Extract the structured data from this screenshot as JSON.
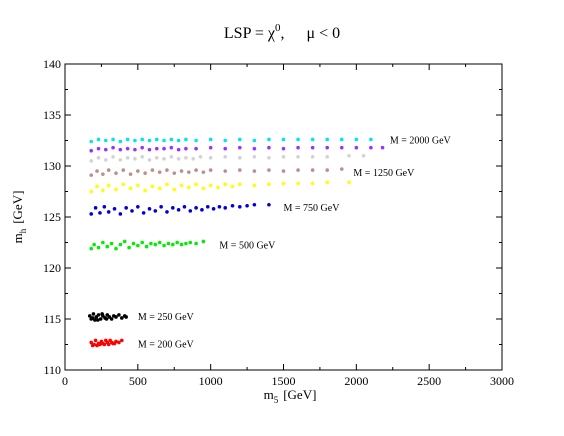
{
  "chart_data": {
    "type": "scatter",
    "title": {
      "prefix": "LSP = χ",
      "superscript": "0",
      "suffix": ",",
      "condition": "μ  < 0"
    },
    "xlabel": {
      "main": "m",
      "subscript": "5",
      "unit": "[GeV]"
    },
    "ylabel": {
      "main": "m",
      "subscript": "h",
      "unit": "[GeV]"
    },
    "xlim": [
      0,
      3000
    ],
    "ylim": [
      110,
      140
    ],
    "xticks": [
      "0",
      "500",
      "1000",
      "1500",
      "2000",
      "2500",
      "3000"
    ],
    "yticks": [
      "110",
      "115",
      "120",
      "125",
      "130",
      "135",
      "140"
    ],
    "grid": false,
    "series": [
      {
        "color": "#ff0000",
        "points": [
          [
            180,
            112.7
          ],
          [
            200,
            112.5
          ],
          [
            210,
            112.9
          ],
          [
            230,
            112.6
          ],
          [
            250,
            112.8
          ],
          [
            270,
            112.5
          ],
          [
            290,
            112.7
          ],
          [
            310,
            112.9
          ],
          [
            330,
            112.6
          ],
          [
            350,
            112.8
          ],
          [
            370,
            112.7
          ],
          [
            390,
            112.9
          ],
          [
            190,
            112.4
          ],
          [
            220,
            112.4
          ],
          [
            240,
            112.5
          ],
          [
            260,
            112.6
          ],
          [
            280,
            112.9
          ],
          [
            300,
            112.5
          ],
          [
            320,
            112.7
          ],
          [
            340,
            112.6
          ]
        ]
      },
      {
        "color": "#000000",
        "points": [
          [
            170,
            115.3
          ],
          [
            180,
            115.0
          ],
          [
            195,
            115.5
          ],
          [
            205,
            114.9
          ],
          [
            215,
            115.2
          ],
          [
            230,
            115.4
          ],
          [
            245,
            115.0
          ],
          [
            260,
            115.3
          ],
          [
            275,
            115.1
          ],
          [
            290,
            115.4
          ],
          [
            305,
            115.2
          ],
          [
            320,
            115.0
          ],
          [
            335,
            115.3
          ],
          [
            350,
            115.2
          ],
          [
            370,
            115.4
          ],
          [
            390,
            115.1
          ],
          [
            410,
            115.3
          ],
          [
            420,
            115.2
          ],
          [
            190,
            115.1
          ],
          [
            225,
            114.9
          ],
          [
            255,
            115.5
          ],
          [
            285,
            115.0
          ]
        ]
      },
      {
        "color": "#00ee00",
        "points": [
          [
            180,
            121.9
          ],
          [
            200,
            122.3
          ],
          [
            230,
            122.0
          ],
          [
            260,
            122.5
          ],
          [
            290,
            122.1
          ],
          [
            320,
            122.4
          ],
          [
            350,
            121.9
          ],
          [
            380,
            122.3
          ],
          [
            410,
            122.6
          ],
          [
            440,
            122.0
          ],
          [
            470,
            122.4
          ],
          [
            500,
            122.2
          ],
          [
            530,
            122.5
          ],
          [
            560,
            122.1
          ],
          [
            590,
            122.4
          ],
          [
            620,
            122.3
          ],
          [
            650,
            122.5
          ],
          [
            680,
            122.2
          ],
          [
            710,
            122.4
          ],
          [
            740,
            122.3
          ],
          [
            770,
            122.5
          ],
          [
            800,
            122.3
          ],
          [
            830,
            122.4
          ],
          [
            860,
            122.5
          ],
          [
            900,
            122.4
          ],
          [
            950,
            122.6
          ]
        ]
      },
      {
        "color": "#0000dd",
        "points": [
          [
            180,
            125.3
          ],
          [
            210,
            125.9
          ],
          [
            240,
            125.4
          ],
          [
            270,
            126.0
          ],
          [
            300,
            125.5
          ],
          [
            340,
            125.8
          ],
          [
            380,
            125.3
          ],
          [
            420,
            125.9
          ],
          [
            460,
            125.6
          ],
          [
            500,
            126.0
          ],
          [
            540,
            125.4
          ],
          [
            580,
            125.8
          ],
          [
            620,
            125.6
          ],
          [
            660,
            126.0
          ],
          [
            700,
            125.5
          ],
          [
            740,
            125.9
          ],
          [
            780,
            125.7
          ],
          [
            820,
            126.0
          ],
          [
            860,
            125.6
          ],
          [
            900,
            125.9
          ],
          [
            940,
            125.7
          ],
          [
            980,
            126.0
          ],
          [
            1020,
            125.8
          ],
          [
            1060,
            126.0
          ],
          [
            1100,
            125.9
          ],
          [
            1150,
            126.1
          ],
          [
            1200,
            126.0
          ],
          [
            1250,
            126.1
          ],
          [
            1300,
            126.2
          ],
          [
            1400,
            126.2
          ]
        ]
      },
      {
        "color": "#ffff00",
        "points": [
          [
            180,
            127.5
          ],
          [
            220,
            128.0
          ],
          [
            260,
            127.6
          ],
          [
            300,
            128.1
          ],
          [
            350,
            127.7
          ],
          [
            400,
            128.2
          ],
          [
            450,
            127.8
          ],
          [
            500,
            128.1
          ],
          [
            550,
            127.6
          ],
          [
            600,
            128.0
          ],
          [
            650,
            127.8
          ],
          [
            700,
            128.2
          ],
          [
            750,
            127.7
          ],
          [
            800,
            128.1
          ],
          [
            850,
            127.9
          ],
          [
            900,
            128.2
          ],
          [
            950,
            127.8
          ],
          [
            1000,
            128.1
          ],
          [
            1050,
            127.9
          ],
          [
            1100,
            128.2
          ],
          [
            1150,
            128.0
          ],
          [
            1200,
            128.2
          ],
          [
            1300,
            128.1
          ],
          [
            1400,
            128.2
          ],
          [
            1500,
            128.3
          ],
          [
            1600,
            128.3
          ],
          [
            1700,
            128.3
          ],
          [
            1800,
            128.4
          ],
          [
            1950,
            128.4
          ]
        ]
      },
      {
        "color": "#bc8f8f",
        "points": [
          [
            180,
            129.1
          ],
          [
            220,
            129.5
          ],
          [
            260,
            129.2
          ],
          [
            300,
            129.6
          ],
          [
            350,
            129.3
          ],
          [
            400,
            129.6
          ],
          [
            450,
            129.2
          ],
          [
            500,
            129.5
          ],
          [
            550,
            129.3
          ],
          [
            600,
            129.6
          ],
          [
            650,
            129.4
          ],
          [
            700,
            129.6
          ],
          [
            750,
            129.3
          ],
          [
            800,
            129.5
          ],
          [
            850,
            129.4
          ],
          [
            900,
            129.6
          ],
          [
            950,
            129.4
          ],
          [
            1000,
            129.6
          ],
          [
            1100,
            129.5
          ],
          [
            1200,
            129.6
          ],
          [
            1300,
            129.5
          ],
          [
            1400,
            129.6
          ],
          [
            1500,
            129.5
          ],
          [
            1600,
            129.6
          ],
          [
            1700,
            129.6
          ],
          [
            1800,
            129.6
          ],
          [
            1900,
            129.7
          ]
        ]
      },
      {
        "color": "#d3d3d3",
        "points": [
          [
            180,
            130.5
          ],
          [
            230,
            130.8
          ],
          [
            280,
            130.6
          ],
          [
            330,
            130.9
          ],
          [
            380,
            130.6
          ],
          [
            430,
            130.8
          ],
          [
            480,
            130.7
          ],
          [
            530,
            130.9
          ],
          [
            580,
            130.6
          ],
          [
            630,
            130.8
          ],
          [
            680,
            130.7
          ],
          [
            730,
            130.9
          ],
          [
            780,
            130.7
          ],
          [
            830,
            130.8
          ],
          [
            880,
            130.7
          ],
          [
            930,
            130.9
          ],
          [
            1000,
            130.8
          ],
          [
            1100,
            130.9
          ],
          [
            1200,
            130.8
          ],
          [
            1300,
            130.9
          ],
          [
            1400,
            130.8
          ],
          [
            1500,
            130.9
          ],
          [
            1600,
            130.9
          ],
          [
            1700,
            130.9
          ],
          [
            1800,
            130.9
          ],
          [
            1950,
            131.0
          ],
          [
            2050,
            131.0
          ]
        ]
      },
      {
        "color": "#9b30ff",
        "points": [
          [
            180,
            131.5
          ],
          [
            230,
            131.7
          ],
          [
            280,
            131.6
          ],
          [
            330,
            131.8
          ],
          [
            380,
            131.6
          ],
          [
            430,
            131.7
          ],
          [
            480,
            131.6
          ],
          [
            530,
            131.8
          ],
          [
            580,
            131.6
          ],
          [
            630,
            131.7
          ],
          [
            680,
            131.7
          ],
          [
            730,
            131.8
          ],
          [
            780,
            131.6
          ],
          [
            830,
            131.7
          ],
          [
            900,
            131.7
          ],
          [
            1000,
            131.8
          ],
          [
            1100,
            131.7
          ],
          [
            1200,
            131.8
          ],
          [
            1300,
            131.7
          ],
          [
            1400,
            131.8
          ],
          [
            1500,
            131.7
          ],
          [
            1600,
            131.8
          ],
          [
            1700,
            131.8
          ],
          [
            1800,
            131.8
          ],
          [
            1900,
            131.8
          ],
          [
            2000,
            131.8
          ],
          [
            2100,
            131.8
          ],
          [
            2180,
            131.8
          ]
        ]
      },
      {
        "color": "#00e5ee",
        "points": [
          [
            180,
            132.4
          ],
          [
            230,
            132.6
          ],
          [
            280,
            132.5
          ],
          [
            330,
            132.6
          ],
          [
            380,
            132.4
          ],
          [
            430,
            132.6
          ],
          [
            480,
            132.5
          ],
          [
            530,
            132.6
          ],
          [
            580,
            132.5
          ],
          [
            630,
            132.6
          ],
          [
            680,
            132.5
          ],
          [
            730,
            132.6
          ],
          [
            780,
            132.5
          ],
          [
            830,
            132.6
          ],
          [
            900,
            132.5
          ],
          [
            1000,
            132.6
          ],
          [
            1100,
            132.5
          ],
          [
            1200,
            132.6
          ],
          [
            1300,
            132.5
          ],
          [
            1400,
            132.6
          ],
          [
            1500,
            132.6
          ],
          [
            1600,
            132.6
          ],
          [
            1700,
            132.6
          ],
          [
            1800,
            132.6
          ],
          [
            1900,
            132.6
          ],
          [
            2000,
            132.6
          ],
          [
            2100,
            132.6
          ]
        ]
      }
    ],
    "annotations": [
      {
        "text": "M = 200 GeV",
        "x": 500,
        "y": 112.5
      },
      {
        "text": "M = 250 GeV",
        "x": 500,
        "y": 115.2
      },
      {
        "text": "M = 500 GeV",
        "x": 1060,
        "y": 122.2
      },
      {
        "text": "M = 750 GeV",
        "x": 1500,
        "y": 125.9
      },
      {
        "text": "M = 1250 GeV",
        "x": 1980,
        "y": 129.3
      },
      {
        "text": "M = 2000 GeV",
        "x": 2230,
        "y": 132.5
      }
    ]
  }
}
